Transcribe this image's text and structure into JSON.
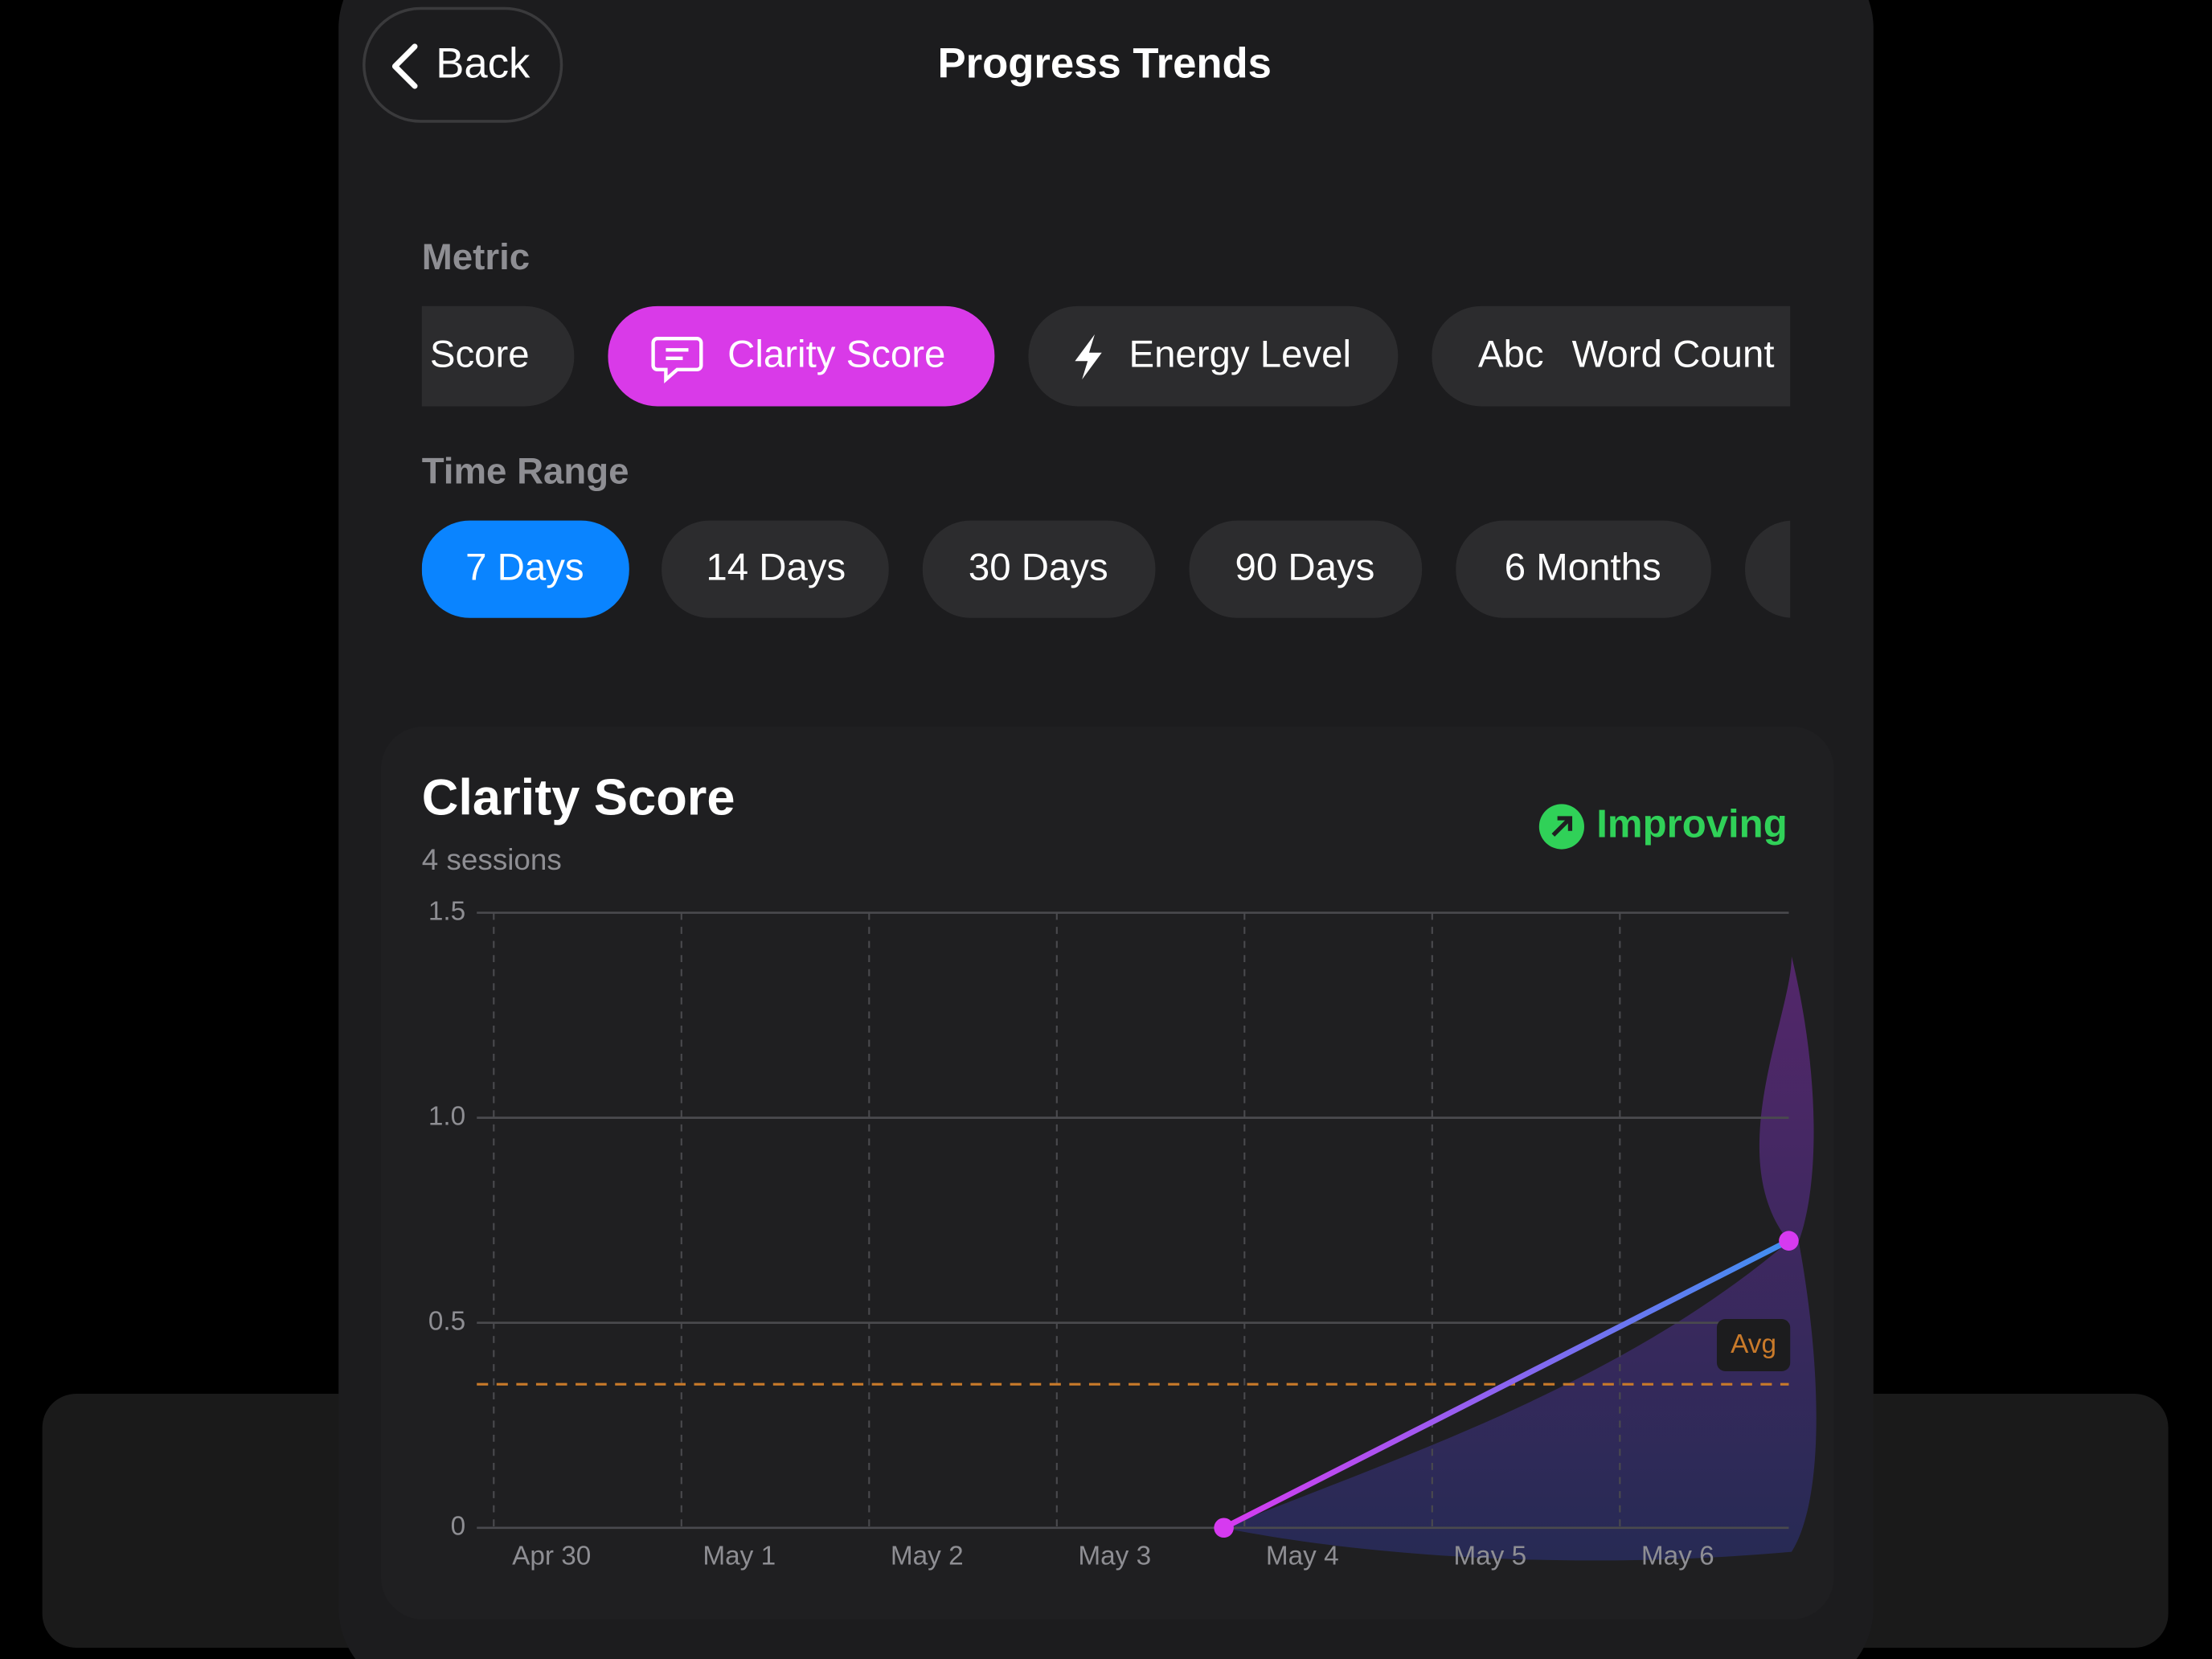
{
  "header": {
    "back": "Back",
    "title": "Progress Trends"
  },
  "metric": {
    "label": "Metric",
    "options": [
      "Score",
      "Clarity Score",
      "Energy Level",
      "Word Count"
    ],
    "word_count_icon": "Abc"
  },
  "time_range": {
    "label": "Time Range",
    "options": [
      "7 Days",
      "14 Days",
      "30 Days",
      "90 Days",
      "6 Months"
    ]
  },
  "card": {
    "title": "Clarity Score",
    "subtitle": "4 sessions",
    "trend": "Improving"
  },
  "chart": {
    "type": "line",
    "x": [
      3.89,
      6.9
    ],
    "series": [
      {
        "values": [
          0,
          0.7
        ],
        "color": "#d63af0"
      }
    ],
    "xlim": [
      0,
      6.9
    ],
    "xticks": [
      {
        "value": 0,
        "label": "Apr 30"
      },
      {
        "value": 1,
        "label": "May 1"
      },
      {
        "value": 2,
        "label": "May 2"
      },
      {
        "value": 3,
        "label": "May 3"
      },
      {
        "value": 4,
        "label": "May 4"
      },
      {
        "value": 5,
        "label": "May 5"
      },
      {
        "value": 6,
        "label": "May 6"
      }
    ],
    "ylim": [
      0,
      1.5
    ],
    "yticks": [
      0,
      0.5,
      {
        "value": 1,
        "label": "1.0"
      },
      1.5
    ],
    "avg": 0.35,
    "avg_label": "Avg",
    "avg_color": "#c97a2a",
    "grid": true
  }
}
